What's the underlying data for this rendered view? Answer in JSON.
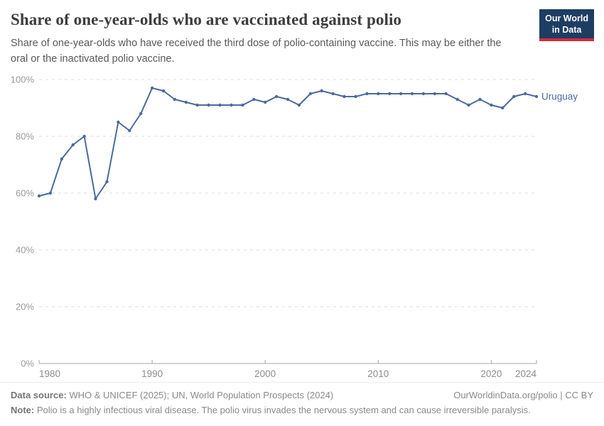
{
  "header": {
    "title": "Share of one-year-olds who are vaccinated against polio",
    "subtitle": "Share of one-year-olds who have received the third dose of polio-containing vaccine. This may be either the oral or the inactivated polio vaccine.",
    "logo": {
      "line1": "Our World",
      "line2": "in Data",
      "bg_color": "#1d3d63",
      "accent_color": "#cf2e41"
    }
  },
  "chart_data": {
    "type": "line",
    "title": "Share of one-year-olds who are vaccinated against polio",
    "xlabel": "",
    "ylabel": "",
    "ylim": [
      0,
      100
    ],
    "yticks": [
      0,
      20,
      40,
      60,
      80,
      100
    ],
    "ytick_suffix": "%",
    "xticks": [
      1980,
      1990,
      2000,
      2010,
      2020,
      2024
    ],
    "grid": "horizontal-dashed",
    "legend": "end-of-line-label",
    "x": [
      1980,
      1981,
      1982,
      1983,
      1984,
      1985,
      1986,
      1987,
      1988,
      1989,
      1990,
      1991,
      1992,
      1993,
      1994,
      1995,
      1996,
      1997,
      1998,
      1999,
      2000,
      2001,
      2002,
      2003,
      2004,
      2005,
      2006,
      2007,
      2008,
      2009,
      2010,
      2011,
      2012,
      2013,
      2014,
      2015,
      2016,
      2017,
      2018,
      2019,
      2020,
      2021,
      2022,
      2023,
      2024
    ],
    "series": [
      {
        "name": "Uruguay",
        "color": "#4C6A9C",
        "values": [
          59,
          60,
          72,
          77,
          80,
          58,
          64,
          85,
          82,
          88,
          97,
          96,
          93,
          92,
          91,
          91,
          91,
          91,
          91,
          93,
          92,
          94,
          93,
          91,
          95,
          96,
          95,
          94,
          94,
          95,
          95,
          95,
          95,
          95,
          95,
          95,
          95,
          93,
          91,
          93,
          91,
          90,
          94,
          95,
          94
        ]
      }
    ],
    "colors": {
      "gridline": "#dcdcdc",
      "axis": "#a5a5a5",
      "y_tick_label": "#9a9a9a",
      "x_tick_label": "#8c8c8c"
    }
  },
  "footer": {
    "datasource_label": "Data source:",
    "datasource_text": "WHO & UNICEF (2025); UN, World Population Prospects (2024)",
    "rights": "OurWorldinData.org/polio | CC BY",
    "note_label": "Note:",
    "note_text": "Polio is a highly infectious viral disease. The polio virus invades the nervous system and can cause irreversible paralysis."
  }
}
